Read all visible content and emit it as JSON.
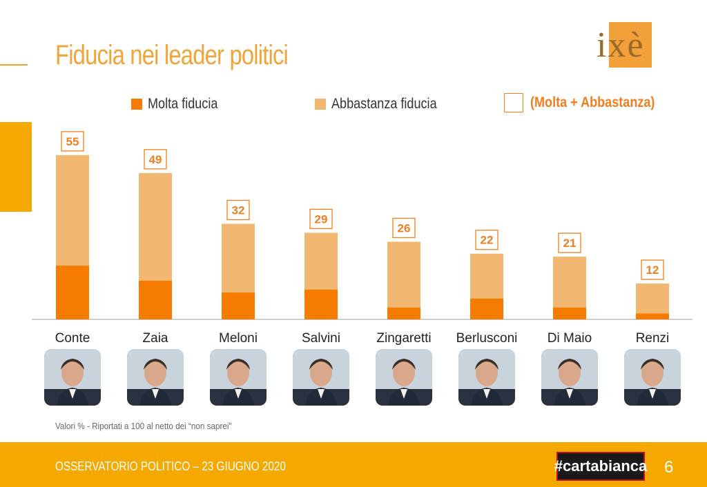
{
  "slide": {
    "title": "Fiducia nei leader politici",
    "logo_text": "ixè",
    "footnote": "Valori % - Riportati a 100 al netto dei “non saprei”",
    "footer_text": "OSSERVATORIO POLITICO – 23 GIUGNO 2020",
    "brand": "#cartabianca",
    "page_number": "6"
  },
  "colors": {
    "accent": "#f5a800",
    "molta": "#f57c00",
    "abbastanza": "#f2b871",
    "total_label": "#f07e1e"
  },
  "chart_data": {
    "type": "bar",
    "stacked": true,
    "categories": [
      "Conte",
      "Zaia",
      "Meloni",
      "Salvini",
      "Zingaretti",
      "Berlusconi",
      "Di Maio",
      "Renzi"
    ],
    "series": [
      {
        "name": "Molta fiducia",
        "values": [
          18,
          13,
          9,
          10,
          4,
          7,
          4,
          2
        ]
      },
      {
        "name": "Abbastanza fiducia",
        "values": [
          37,
          36,
          23,
          19,
          22,
          15,
          17,
          10
        ]
      }
    ],
    "totals_label": "(Molta + Abbastanza)",
    "totals": [
      55,
      49,
      32,
      29,
      26,
      22,
      21,
      12
    ],
    "legend_position": "top",
    "grid": false
  },
  "photos": [
    "portrait-conte",
    "portrait-zaia",
    "portrait-meloni",
    "portrait-salvini",
    "portrait-zingaretti",
    "portrait-berlusconi",
    "portrait-di-maio",
    "portrait-renzi"
  ]
}
